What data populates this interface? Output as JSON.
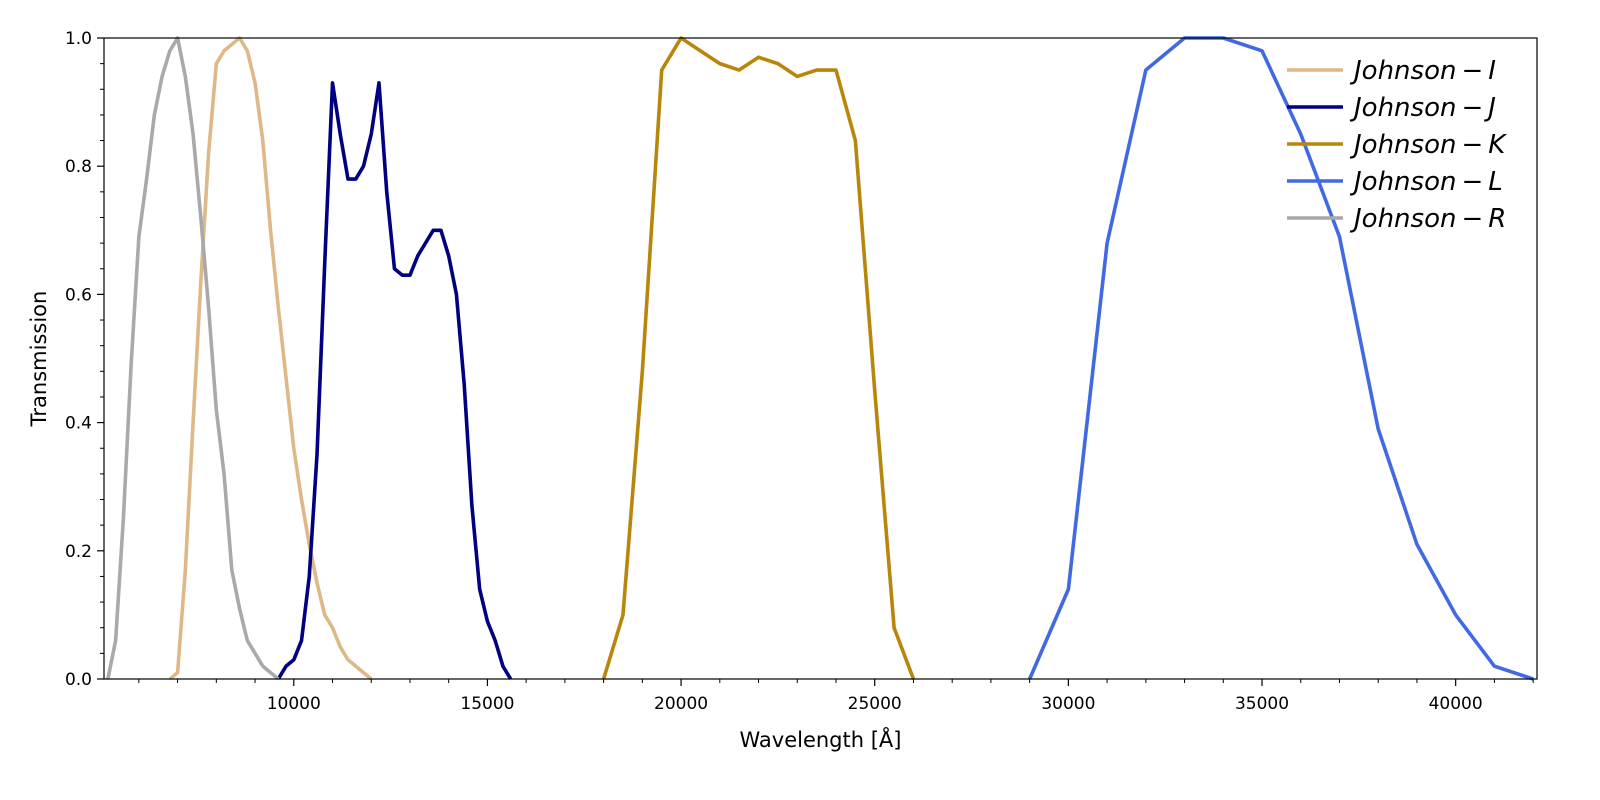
{
  "chart_data": {
    "type": "line",
    "xlabel": "Wavelength [Å]",
    "ylabel": "Transmission",
    "xlim": [
      5100,
      42100
    ],
    "ylim": [
      0.0,
      1.0
    ],
    "x_ticks": [
      10000,
      15000,
      20000,
      25000,
      30000,
      35000,
      40000
    ],
    "x_tick_labels": [
      "10000",
      "15000",
      "20000",
      "25000",
      "30000",
      "35000",
      "40000"
    ],
    "y_ticks": [
      0.0,
      0.2,
      0.4,
      0.6,
      0.8,
      1.0
    ],
    "y_tick_labels": [
      "0.0",
      "0.2",
      "0.4",
      "0.6",
      "0.8",
      "1.0"
    ],
    "grid": false,
    "legend_position": "top-right",
    "series": [
      {
        "name": "Johnson – I",
        "legend_base": "Johnson",
        "legend_suffix": "I",
        "color": "#deb887",
        "x": [
          6800,
          7000,
          7200,
          7400,
          7600,
          7800,
          8000,
          8200,
          8400,
          8600,
          8800,
          9000,
          9200,
          9400,
          9600,
          9800,
          10000,
          10200,
          10400,
          10600,
          10800,
          11000,
          11200,
          11400,
          11600,
          11800,
          12000
        ],
        "y": [
          0.0,
          0.01,
          0.17,
          0.4,
          0.62,
          0.82,
          0.96,
          0.98,
          0.99,
          1.0,
          0.98,
          0.93,
          0.84,
          0.7,
          0.58,
          0.47,
          0.36,
          0.28,
          0.21,
          0.15,
          0.1,
          0.08,
          0.05,
          0.03,
          0.02,
          0.01,
          0.0
        ]
      },
      {
        "name": "Johnson – J",
        "legend_base": "Johnson",
        "legend_suffix": "J",
        "color": "#000080",
        "x": [
          9600,
          9800,
          10000,
          10200,
          10400,
          10600,
          10800,
          11000,
          11200,
          11400,
          11600,
          11800,
          12000,
          12200,
          12400,
          12600,
          12800,
          13000,
          13200,
          13400,
          13600,
          13800,
          14000,
          14200,
          14400,
          14600,
          14800,
          15000,
          15200,
          15400,
          15600
        ],
        "y": [
          0.0,
          0.02,
          0.03,
          0.06,
          0.16,
          0.35,
          0.65,
          0.93,
          0.85,
          0.78,
          0.78,
          0.8,
          0.85,
          0.93,
          0.76,
          0.64,
          0.63,
          0.63,
          0.66,
          0.68,
          0.7,
          0.7,
          0.66,
          0.6,
          0.46,
          0.27,
          0.14,
          0.09,
          0.06,
          0.02,
          0.0
        ]
      },
      {
        "name": "Johnson – K",
        "legend_base": "Johnson",
        "legend_suffix": "K",
        "color": "#b8860b",
        "x": [
          18000,
          18500,
          19000,
          19500,
          20000,
          20500,
          21000,
          21500,
          22000,
          22500,
          23000,
          23500,
          24000,
          24500,
          25000,
          25500,
          26000
        ],
        "y": [
          0.0,
          0.1,
          0.48,
          0.95,
          1.0,
          0.98,
          0.96,
          0.95,
          0.97,
          0.96,
          0.94,
          0.95,
          0.95,
          0.84,
          0.45,
          0.08,
          0.0
        ]
      },
      {
        "name": "Johnson – L",
        "legend_base": "Johnson",
        "legend_suffix": "L",
        "color": "#4169e1",
        "x": [
          29000,
          30000,
          31000,
          32000,
          33000,
          34000,
          35000,
          36000,
          37000,
          38000,
          39000,
          40000,
          41000,
          42000
        ],
        "y": [
          0.0,
          0.14,
          0.68,
          0.95,
          1.0,
          1.0,
          0.98,
          0.85,
          0.69,
          0.39,
          0.21,
          0.1,
          0.02,
          0.0
        ]
      },
      {
        "name": "Johnson – R",
        "legend_base": "Johnson",
        "legend_suffix": "R",
        "color": "#a9a9a9",
        "x": [
          5200,
          5400,
          5600,
          5800,
          6000,
          6200,
          6400,
          6600,
          6800,
          7000,
          7200,
          7400,
          7600,
          7800,
          8000,
          8200,
          8400,
          8600,
          8800,
          9000,
          9200,
          9400,
          9600
        ],
        "y": [
          0.0,
          0.06,
          0.25,
          0.49,
          0.69,
          0.78,
          0.88,
          0.94,
          0.98,
          1.0,
          0.94,
          0.85,
          0.72,
          0.58,
          0.42,
          0.32,
          0.17,
          0.11,
          0.06,
          0.04,
          0.02,
          0.01,
          0.0
        ]
      }
    ]
  }
}
